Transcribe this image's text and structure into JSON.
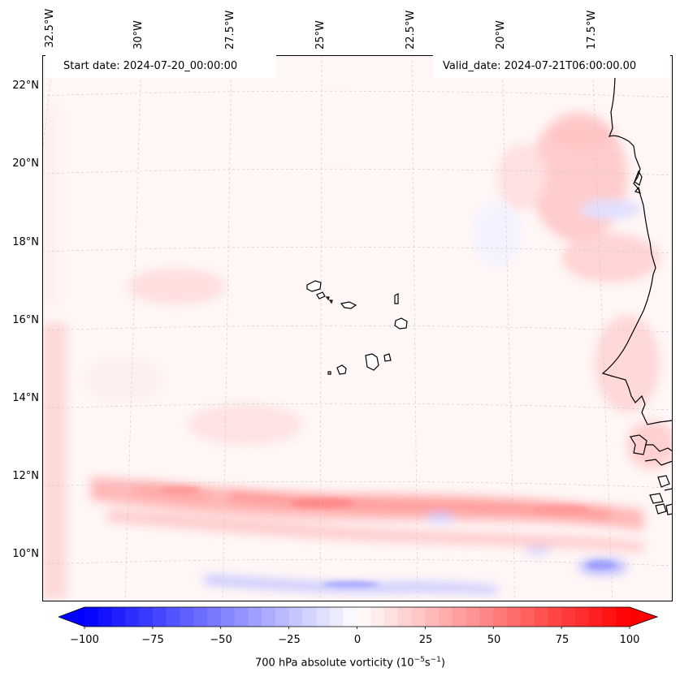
{
  "header": {
    "start_date": "Start date: 2024-07-20_00:00:00",
    "valid_date": "Valid_date: 2024-07-21T06:00:00.00"
  },
  "map": {
    "projection": "lambert-conformal",
    "lon_labels": [
      "32.5°W",
      "30°W",
      "27.5°W",
      "25°W",
      "22.5°W",
      "20°W",
      "17.5°W"
    ],
    "lat_labels": [
      "22°N",
      "20°N",
      "18°N",
      "16°N",
      "14°N",
      "12°N",
      "10°N"
    ],
    "gridlines": "dashed light gray",
    "features": [
      "Cape Verde islands",
      "West African coastline"
    ]
  },
  "colorbar": {
    "label": "700 hPa absolute vorticity (10",
    "label_exp1": "−5",
    "label_mid": "s",
    "label_exp2": "−1",
    "label_end": ")",
    "ticks": [
      "−100",
      "−75",
      "−50",
      "−25",
      "0",
      "25",
      "50",
      "75",
      "100"
    ],
    "range": [
      -100,
      100
    ],
    "colormap": "bwr",
    "colors": {
      "low": "#0000ff",
      "mid": "#ffffff",
      "high": "#ff0000"
    }
  }
}
